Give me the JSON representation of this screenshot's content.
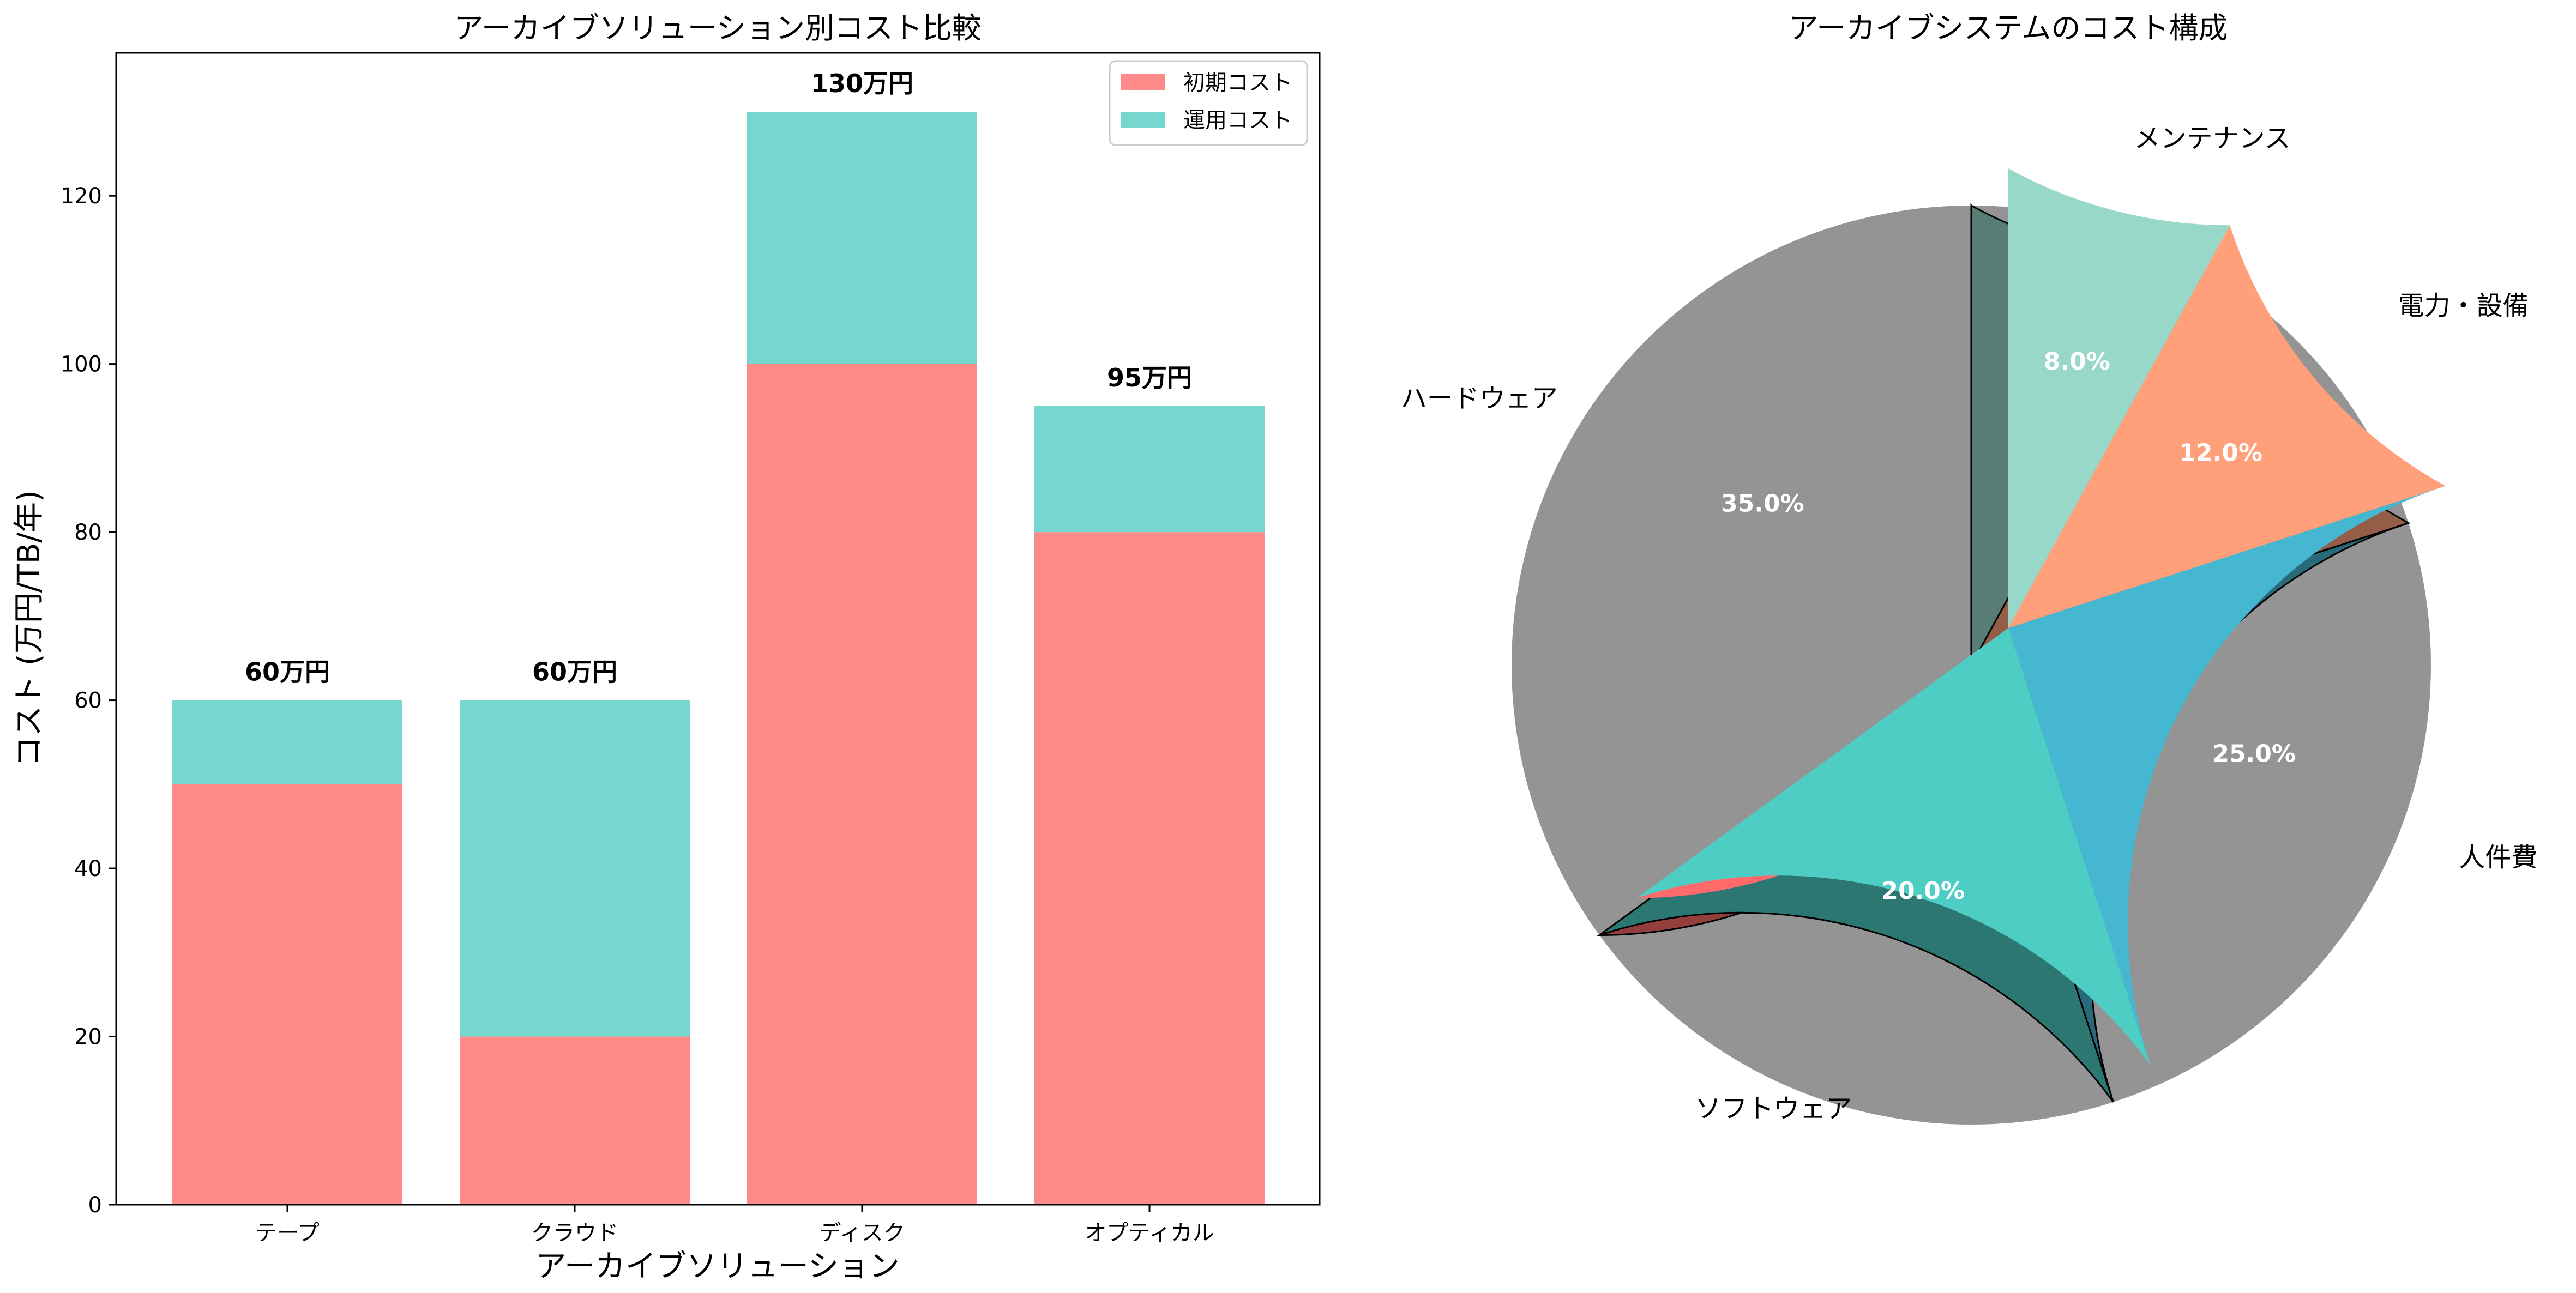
{
  "chart_data": [
    {
      "type": "bar",
      "stacked": true,
      "title": "アーカイブソリューション別コスト比較",
      "xlabel": "アーカイブソリューション",
      "ylabel": "コスト (万円/TB/年)",
      "categories": [
        "テープ",
        "クラウド",
        "ディスク",
        "オプティカル"
      ],
      "series": [
        {
          "name": "初期コスト",
          "values": [
            50,
            20,
            100,
            80
          ],
          "color": "#FF8A8A"
        },
        {
          "name": "運用コスト",
          "values": [
            10,
            40,
            30,
            15
          ],
          "color": "#76D7CF"
        }
      ],
      "totals": [
        60,
        60,
        130,
        95
      ],
      "total_labels": [
        "60万円",
        "60万円",
        "130万円",
        "95万円"
      ],
      "ylim": [
        0,
        137
      ],
      "yticks": [
        "0",
        "20",
        "40",
        "60",
        "80",
        "100",
        "120"
      ],
      "grid": false,
      "legend_position": "top-right"
    },
    {
      "type": "pie",
      "title": "アーカイブシステムのコスト構成",
      "shadow": true,
      "slices": [
        {
          "label": "ハードウェア",
          "value": 35.0,
          "pct_label": "35.0%",
          "color": "#FF6B6B"
        },
        {
          "label": "ソフトウェア",
          "value": 20.0,
          "pct_label": "20.0%",
          "color": "#4ECDC4"
        },
        {
          "label": "人件費",
          "value": 25.0,
          "pct_label": "25.0%",
          "color": "#45B7D1"
        },
        {
          "label": "電力・設備",
          "value": 12.0,
          "pct_label": "12.0%",
          "color": "#FFA07A"
        },
        {
          "label": "メンテナンス",
          "value": 8.0,
          "pct_label": "8.0%",
          "color": "#98D8C8"
        }
      ]
    }
  ]
}
